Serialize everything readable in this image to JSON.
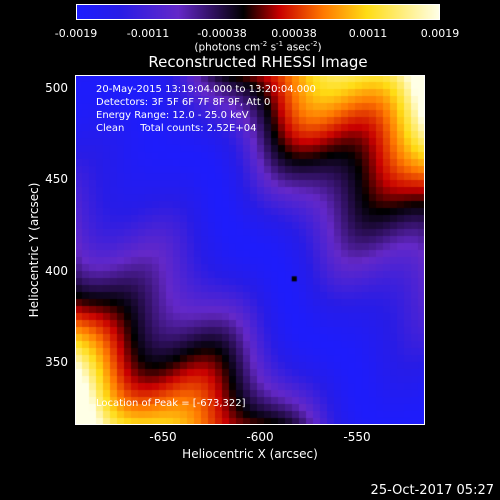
{
  "colorbar": {
    "tick_labels": [
      "-0.0019",
      "-0.0011",
      "-0.00038",
      "0.00038",
      "0.0011",
      "0.0019"
    ],
    "unit": {
      "a": "(photons cm",
      "b": "-2",
      "c": " s",
      "d": "-1",
      "e": " asec",
      "f": "-2",
      "g": ")"
    }
  },
  "title": "Reconstructed RHESSI Image",
  "info": {
    "line1": "20-May-2015 13:19:04.000 to 13:20:04.000",
    "line2": "Detectors: 3F 5F 6F 7F 8F 9F, Att 0",
    "line3": "Energy Range: 12.0 - 25.0 keV",
    "line4": "Clean     Total counts: 2.52E+04"
  },
  "peak": {
    "label": "Location of Peak = [-673,322]",
    "x": -673,
    "y": 322
  },
  "axes": {
    "xlabel": "Heliocentric X (arcsec)",
    "ylabel": "Heliocentric Y (arcsec)",
    "xlim": [
      -700,
      -500
    ],
    "ylim": [
      300,
      510
    ],
    "xticks": [
      -650,
      -600,
      -550
    ],
    "xtick_labels": [
      "-650",
      "-600",
      "-550"
    ],
    "yticks": [
      350,
      400,
      450,
      500
    ],
    "ytick_labels": [
      "350",
      "400",
      "450",
      "500"
    ]
  },
  "timestamp": "25-Oct-2017 05:27",
  "colors": {
    "background": "#000000",
    "foreground": "#ffffff"
  },
  "chart_data": {
    "type": "heatmap",
    "title": "Reconstructed RHESSI Image",
    "xlabel": "Heliocentric X (arcsec)",
    "ylabel": "Heliocentric Y (arcsec)",
    "xlim": [
      -700,
      -500
    ],
    "ylim": [
      300,
      510
    ],
    "colorbar_range": [
      -0.0019,
      0.0019
    ],
    "colormap": "blue-purple-black-red-yellow-white",
    "structure": "diagonal band running from upper-left to lower-right; negative (blue) along the band center, positive (yellow/white) toward the upper-right and lower-left corners",
    "marker": {
      "x": -575,
      "y": 388
    }
  }
}
